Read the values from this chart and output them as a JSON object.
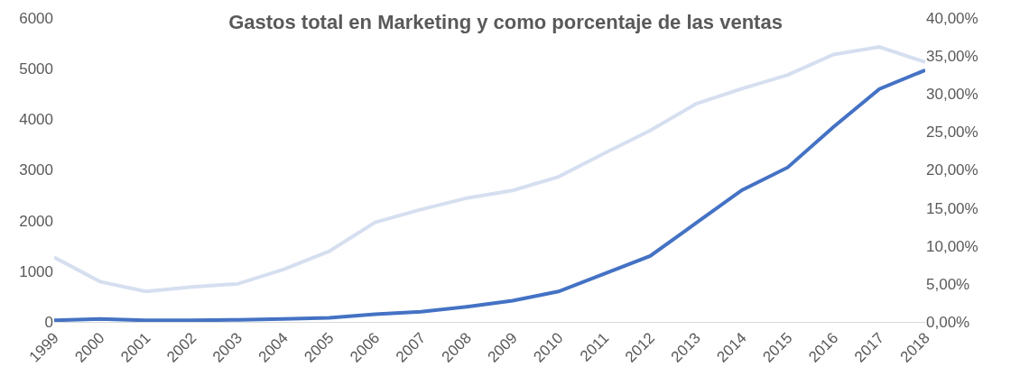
{
  "chart_data": {
    "type": "line",
    "title": "Gastos total en Marketing y como porcentaje de las ventas",
    "categories": [
      "1999",
      "2000",
      "2001",
      "2002",
      "2003",
      "2004",
      "2005",
      "2006",
      "2007",
      "2008",
      "2009",
      "2010",
      "2011",
      "2012",
      "2013",
      "2014",
      "2015",
      "2016",
      "2017",
      "2018"
    ],
    "series": [
      {
        "color": "#4472c4",
        "values": [
          30,
          60,
          30,
          30,
          40,
          60,
          80,
          150,
          200,
          300,
          420,
          600,
          950,
          1300,
          1950,
          2600,
          3050,
          3850,
          4600,
          4970
        ]
      },
      {
        "color": "#d6dff0",
        "axis": "y2",
        "values": [
          8.5,
          5.3,
          4.0,
          4.6,
          5.0,
          6.9,
          9.3,
          13.1,
          14.8,
          16.3,
          17.3,
          19.1,
          22.2,
          25.2,
          28.7,
          30.7,
          32.5,
          35.2,
          36.2,
          34.2
        ]
      }
    ],
    "ylim": [
      0,
      6000
    ],
    "yticks": [
      0,
      1000,
      2000,
      3000,
      4000,
      5000,
      6000
    ],
    "y2lim": [
      0,
      40
    ],
    "y2ticks": [
      {
        "value": 0,
        "label": "0,00%"
      },
      {
        "value": 5,
        "label": "5,00%"
      },
      {
        "value": 10,
        "label": "10,00%"
      },
      {
        "value": 15,
        "label": "15,00%"
      },
      {
        "value": 20,
        "label": "20,00%"
      },
      {
        "value": 25,
        "label": "25,00%"
      },
      {
        "value": 30,
        "label": "30,00%"
      },
      {
        "value": 35,
        "label": "35,00%"
      },
      {
        "value": 40,
        "label": "40,00%"
      }
    ],
    "legend": false,
    "marker": "none",
    "line_style": "solid"
  }
}
